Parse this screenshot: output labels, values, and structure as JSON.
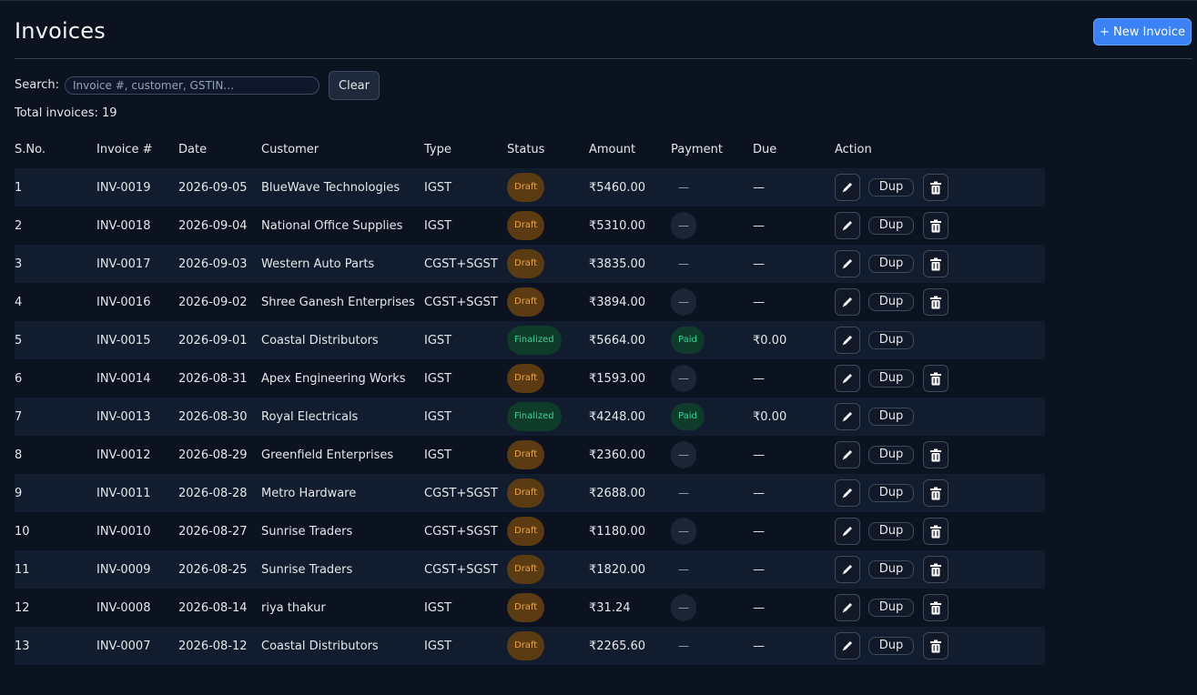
{
  "page": {
    "title": "Invoices",
    "new_button": "+ New Invoice",
    "search_label": "Search:",
    "search_placeholder": "Invoice #, customer, GSTIN…",
    "clear_button": "Clear",
    "total_text": "Total invoices: 19"
  },
  "table": {
    "columns": [
      "S.No.",
      "Invoice #",
      "Date",
      "Customer",
      "Type",
      "Status",
      "Amount",
      "Payment",
      "Due",
      "Action"
    ],
    "dup_label": "Dup",
    "rows": [
      {
        "sno": "1",
        "invoice": "INV-0019",
        "date": "2026-09-05",
        "customer": "BlueWave Technologies",
        "type": "IGST",
        "status": "Draft",
        "amount": "₹5460.00",
        "payment": "—",
        "payment_style": "plain",
        "due": "—",
        "deletable": true
      },
      {
        "sno": "2",
        "invoice": "INV-0018",
        "date": "2026-09-04",
        "customer": "National Office Supplies",
        "type": "IGST",
        "status": "Draft",
        "amount": "₹5310.00",
        "payment": "—",
        "payment_style": "pill",
        "due": "—",
        "deletable": true
      },
      {
        "sno": "3",
        "invoice": "INV-0017",
        "date": "2026-09-03",
        "customer": "Western Auto Parts",
        "type": "CGST+SGST",
        "status": "Draft",
        "amount": "₹3835.00",
        "payment": "—",
        "payment_style": "plain",
        "due": "—",
        "deletable": true
      },
      {
        "sno": "4",
        "invoice": "INV-0016",
        "date": "2026-09-02",
        "customer": "Shree Ganesh Enterprises",
        "type": "CGST+SGST",
        "status": "Draft",
        "amount": "₹3894.00",
        "payment": "—",
        "payment_style": "pill",
        "due": "—",
        "deletable": true
      },
      {
        "sno": "5",
        "invoice": "INV-0015",
        "date": "2026-09-01",
        "customer": "Coastal Distributors",
        "type": "IGST",
        "status": "Finalized",
        "amount": "₹5664.00",
        "payment": "Paid",
        "payment_style": "paid",
        "due": "₹0.00",
        "deletable": false
      },
      {
        "sno": "6",
        "invoice": "INV-0014",
        "date": "2026-08-31",
        "customer": "Apex Engineering Works",
        "type": "IGST",
        "status": "Draft",
        "amount": "₹1593.00",
        "payment": "—",
        "payment_style": "pill",
        "due": "—",
        "deletable": true
      },
      {
        "sno": "7",
        "invoice": "INV-0013",
        "date": "2026-08-30",
        "customer": "Royal Electricals",
        "type": "IGST",
        "status": "Finalized",
        "amount": "₹4248.00",
        "payment": "Paid",
        "payment_style": "paid",
        "due": "₹0.00",
        "deletable": false
      },
      {
        "sno": "8",
        "invoice": "INV-0012",
        "date": "2026-08-29",
        "customer": "Greenfield Enterprises",
        "type": "IGST",
        "status": "Draft",
        "amount": "₹2360.00",
        "payment": "—",
        "payment_style": "pill",
        "due": "—",
        "deletable": true
      },
      {
        "sno": "9",
        "invoice": "INV-0011",
        "date": "2026-08-28",
        "customer": "Metro Hardware",
        "type": "CGST+SGST",
        "status": "Draft",
        "amount": "₹2688.00",
        "payment": "—",
        "payment_style": "plain",
        "due": "—",
        "deletable": true
      },
      {
        "sno": "10",
        "invoice": "INV-0010",
        "date": "2026-08-27",
        "customer": "Sunrise Traders",
        "type": "CGST+SGST",
        "status": "Draft",
        "amount": "₹1180.00",
        "payment": "—",
        "payment_style": "pill",
        "due": "—",
        "deletable": true
      },
      {
        "sno": "11",
        "invoice": "INV-0009",
        "date": "2026-08-25",
        "customer": "Sunrise Traders",
        "type": "CGST+SGST",
        "status": "Draft",
        "amount": "₹1820.00",
        "payment": "—",
        "payment_style": "plain",
        "due": "—",
        "deletable": true
      },
      {
        "sno": "12",
        "invoice": "INV-0008",
        "date": "2026-08-14",
        "customer": "riya thakur",
        "type": "IGST",
        "status": "Draft",
        "amount": "₹31.24",
        "payment": "—",
        "payment_style": "pill",
        "due": "—",
        "deletable": true
      },
      {
        "sno": "13",
        "invoice": "INV-0007",
        "date": "2026-08-12",
        "customer": "Coastal Distributors",
        "type": "IGST",
        "status": "Draft",
        "amount": "₹2265.60",
        "payment": "—",
        "payment_style": "plain",
        "due": "—",
        "deletable": true
      }
    ]
  },
  "colors": {
    "background": "#0b1220",
    "accent": "#3b82f6",
    "draft": "#f0a23c",
    "finalized": "#34d399"
  },
  "icons": {
    "edit": "pencil-icon",
    "delete": "trash-icon"
  }
}
